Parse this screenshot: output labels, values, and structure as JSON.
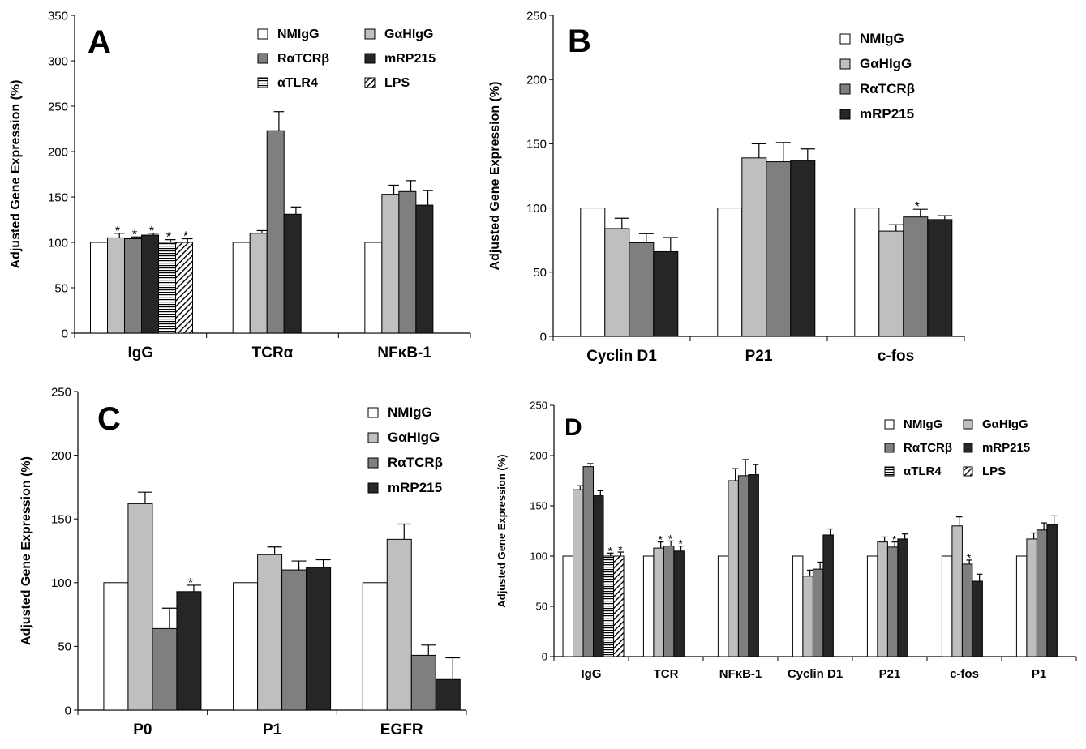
{
  "figure": {
    "panels": [
      "A",
      "B",
      "C",
      "D"
    ]
  },
  "chart_data": [
    {
      "panel": "A",
      "type": "bar",
      "ylabel": "Adjusted Gene Expression (%)",
      "ylim": [
        0,
        350
      ],
      "yticks": [
        0,
        50,
        100,
        150,
        200,
        250,
        300,
        350
      ],
      "categories": [
        "IgG",
        "TCRα",
        "NFκB-1"
      ],
      "legend_placement": "top-right",
      "series": [
        {
          "name": "NMIgG",
          "fill": "#ffffff",
          "pattern": "none",
          "values": [
            100,
            100,
            100
          ],
          "errors": [
            0,
            0,
            0
          ],
          "sig": [
            false,
            false,
            false
          ]
        },
        {
          "name": "GαHIgG",
          "fill": "#bfbfbf",
          "pattern": "none",
          "values": [
            105,
            110,
            153
          ],
          "errors": [
            5,
            3,
            10
          ],
          "sig": [
            true,
            false,
            false
          ]
        },
        {
          "name": "RαTCRβ",
          "fill": "#7f7f7f",
          "pattern": "none",
          "values": [
            104,
            223,
            156
          ],
          "errors": [
            2,
            21,
            12
          ],
          "sig": [
            true,
            false,
            false
          ]
        },
        {
          "name": "mRP215",
          "fill": "#262626",
          "pattern": "none",
          "values": [
            108,
            131,
            141
          ],
          "errors": [
            2,
            8,
            16
          ],
          "sig": [
            true,
            false,
            false
          ]
        },
        {
          "name": "αTLR4",
          "fill": "#ffffff",
          "pattern": "hstripe",
          "values": [
            100,
            null,
            null
          ],
          "errors": [
            3,
            null,
            null
          ],
          "sig": [
            true,
            false,
            false
          ]
        },
        {
          "name": "LPS",
          "fill": "#ffffff",
          "pattern": "diag",
          "values": [
            100,
            null,
            null
          ],
          "errors": [
            4,
            null,
            null
          ],
          "sig": [
            true,
            false,
            false
          ]
        }
      ]
    },
    {
      "panel": "B",
      "type": "bar",
      "ylabel": "Adjusted Gene Expression (%)",
      "ylim": [
        0,
        250
      ],
      "yticks": [
        0,
        50,
        100,
        150,
        200,
        250
      ],
      "categories": [
        "Cyclin D1",
        "P21",
        "c-fos"
      ],
      "legend_placement": "top-right",
      "series": [
        {
          "name": "NMIgG",
          "fill": "#ffffff",
          "pattern": "none",
          "values": [
            100,
            100,
            100
          ],
          "errors": [
            0,
            0,
            0
          ],
          "sig": [
            false,
            false,
            false
          ]
        },
        {
          "name": "GαHIgG",
          "fill": "#bfbfbf",
          "pattern": "none",
          "values": [
            84,
            139,
            82
          ],
          "errors": [
            8,
            11,
            5
          ],
          "sig": [
            false,
            false,
            false
          ]
        },
        {
          "name": "RαTCRβ",
          "fill": "#7f7f7f",
          "pattern": "none",
          "values": [
            73,
            136,
            93
          ],
          "errors": [
            7,
            15,
            6
          ],
          "sig": [
            false,
            false,
            true
          ]
        },
        {
          "name": "mRP215",
          "fill": "#262626",
          "pattern": "none",
          "values": [
            66,
            137,
            91
          ],
          "errors": [
            11,
            9,
            3
          ],
          "sig": [
            false,
            false,
            false
          ]
        }
      ]
    },
    {
      "panel": "C",
      "type": "bar",
      "ylabel": "Adjusted Gene Expression (%)",
      "ylim": [
        0,
        250
      ],
      "yticks": [
        0,
        50,
        100,
        150,
        200,
        250
      ],
      "categories": [
        "P0",
        "P1",
        "EGFR"
      ],
      "legend_placement": "top-right",
      "series": [
        {
          "name": "NMIgG",
          "fill": "#ffffff",
          "pattern": "none",
          "values": [
            100,
            100,
            100
          ],
          "errors": [
            0,
            0,
            0
          ],
          "sig": [
            false,
            false,
            false
          ]
        },
        {
          "name": "GαHIgG",
          "fill": "#bfbfbf",
          "pattern": "none",
          "values": [
            162,
            122,
            134
          ],
          "errors": [
            9,
            6,
            12
          ],
          "sig": [
            false,
            false,
            false
          ]
        },
        {
          "name": "RαTCRβ",
          "fill": "#7f7f7f",
          "pattern": "none",
          "values": [
            64,
            110,
            43
          ],
          "errors": [
            16,
            7,
            8
          ],
          "sig": [
            false,
            false,
            false
          ]
        },
        {
          "name": "mRP215",
          "fill": "#262626",
          "pattern": "none",
          "values": [
            93,
            112,
            24
          ],
          "errors": [
            5,
            6,
            17
          ],
          "sig": [
            true,
            false,
            false
          ]
        }
      ]
    },
    {
      "panel": "D",
      "type": "bar",
      "ylabel": "Adjusted Gene Expression (%)",
      "ylim": [
        0,
        250
      ],
      "yticks": [
        0,
        50,
        100,
        150,
        200,
        250
      ],
      "categories": [
        "IgG",
        "TCR",
        "NFκB-1",
        "Cyclin D1",
        "P21",
        "c-fos",
        "P1"
      ],
      "legend_placement": "top-right",
      "series": [
        {
          "name": "NMIgG",
          "fill": "#ffffff",
          "pattern": "none",
          "values": [
            100,
            100,
            100,
            100,
            100,
            100,
            100
          ],
          "errors": [
            0,
            0,
            0,
            0,
            0,
            0,
            0
          ],
          "sig": [
            false,
            false,
            false,
            false,
            false,
            false,
            false
          ]
        },
        {
          "name": "GαHIgG",
          "fill": "#bfbfbf",
          "pattern": "none",
          "values": [
            166,
            108,
            175,
            80,
            114,
            130,
            117
          ],
          "errors": [
            4,
            6,
            12,
            6,
            5,
            9,
            6
          ],
          "sig": [
            false,
            true,
            false,
            false,
            false,
            false,
            false
          ]
        },
        {
          "name": "RαTCRβ",
          "fill": "#7f7f7f",
          "pattern": "none",
          "values": [
            189,
            110,
            180,
            87,
            109,
            92,
            126
          ],
          "errors": [
            3,
            5,
            16,
            7,
            5,
            4,
            7
          ],
          "sig": [
            false,
            true,
            false,
            false,
            true,
            true,
            false
          ]
        },
        {
          "name": "mRP215",
          "fill": "#262626",
          "pattern": "none",
          "values": [
            160,
            105,
            181,
            121,
            117,
            75,
            131
          ],
          "errors": [
            5,
            5,
            10,
            6,
            5,
            7,
            9
          ],
          "sig": [
            false,
            true,
            false,
            false,
            false,
            false,
            false
          ]
        },
        {
          "name": "αTLR4",
          "fill": "#ffffff",
          "pattern": "hstripe",
          "values": [
            100,
            null,
            null,
            null,
            null,
            null,
            null
          ],
          "errors": [
            3,
            null,
            null,
            null,
            null,
            null,
            null
          ],
          "sig": [
            true,
            false,
            false,
            false,
            false,
            false,
            false
          ]
        },
        {
          "name": "LPS",
          "fill": "#ffffff",
          "pattern": "diag",
          "values": [
            100,
            null,
            null,
            null,
            null,
            null,
            null
          ],
          "errors": [
            4,
            null,
            null,
            null,
            null,
            null,
            null
          ],
          "sig": [
            true,
            false,
            false,
            false,
            false,
            false,
            false
          ]
        }
      ]
    }
  ]
}
